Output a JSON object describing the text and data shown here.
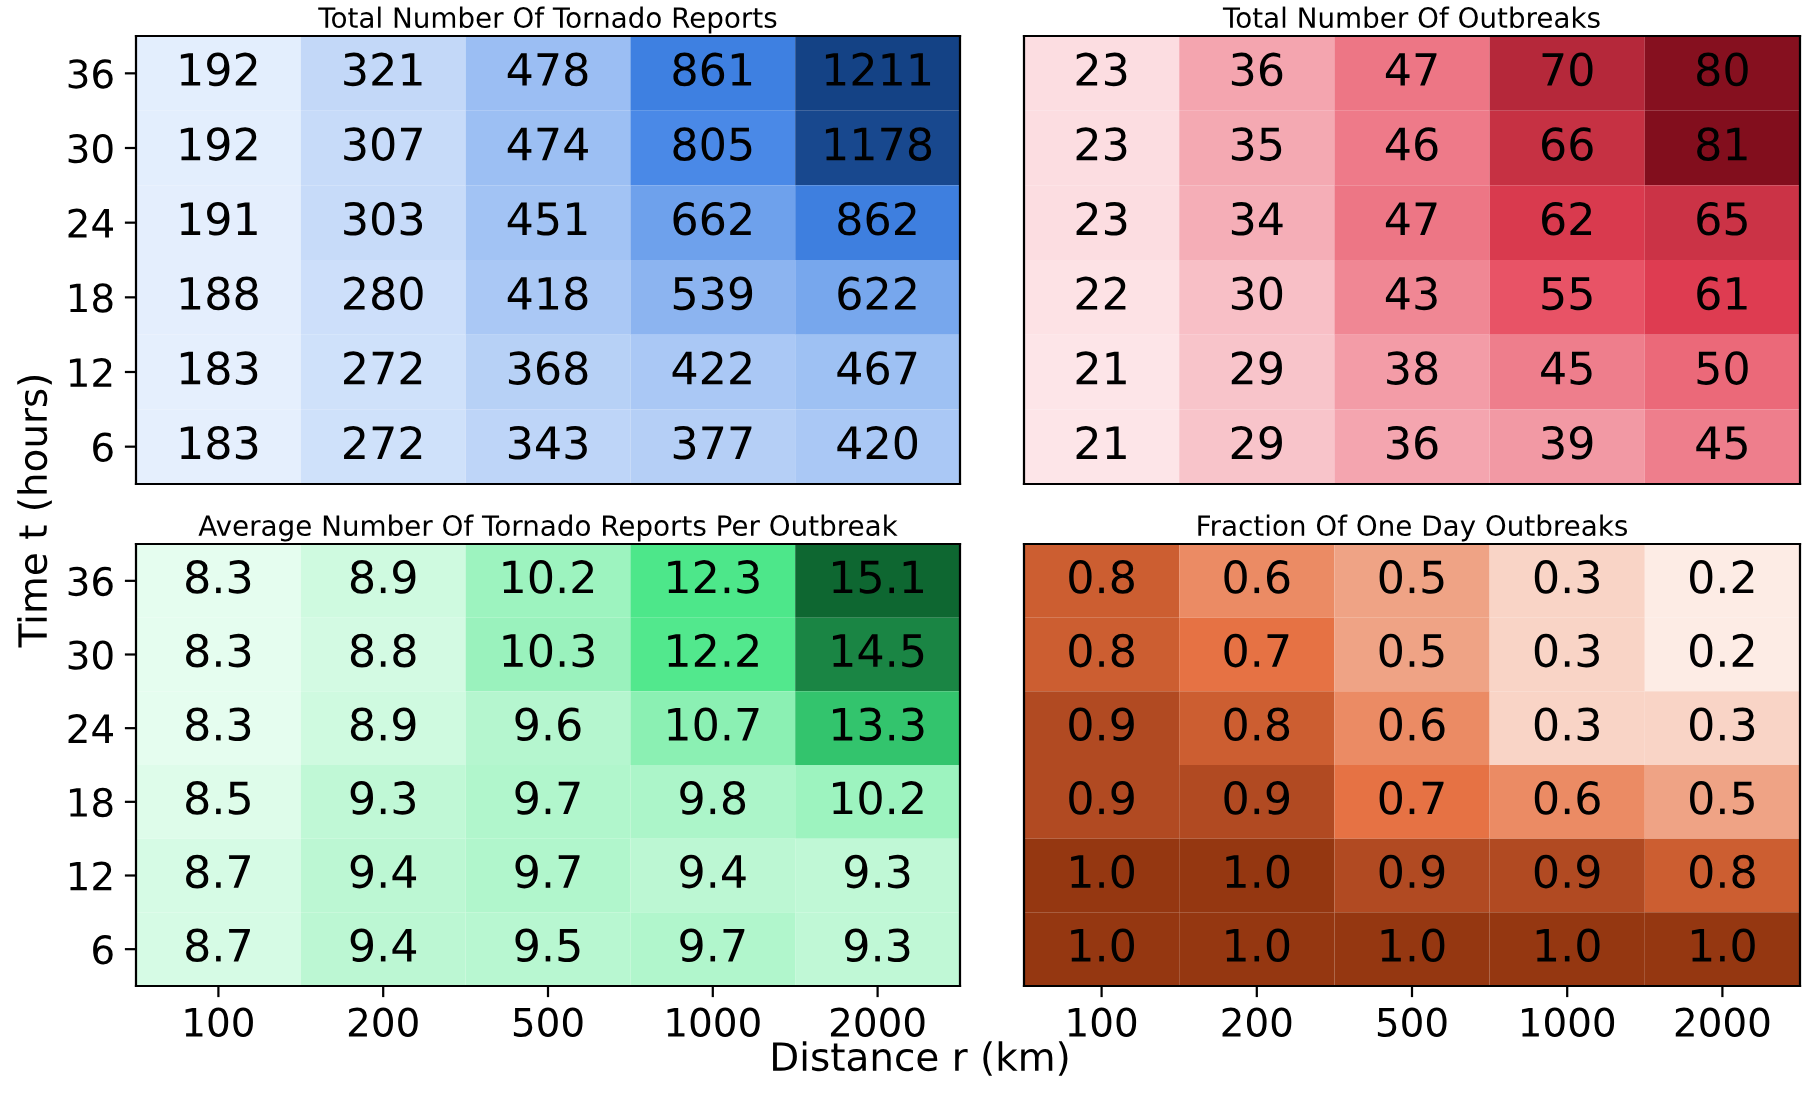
{
  "chart_data": [
    {
      "type": "heatmap",
      "title": "Total Number Of Tornado Reports",
      "color": "#08306b",
      "tick_labels": "y",
      "data_labels": true,
      "categories": [
        "100",
        "200",
        "500",
        "1000",
        "2000"
      ],
      "y_categories": [
        "36",
        "30",
        "24",
        "18",
        "12",
        "6"
      ],
      "cells": [
        [
          192,
          321,
          478,
          861,
          1211
        ],
        [
          192,
          307,
          474,
          805,
          1178
        ],
        [
          191,
          303,
          451,
          662,
          862
        ],
        [
          188,
          280,
          418,
          539,
          622
        ],
        [
          183,
          272,
          368,
          422,
          467
        ],
        [
          183,
          272,
          343,
          377,
          420
        ]
      ]
    },
    {
      "type": "heatmap",
      "title": "Total Number Of Outbreaks",
      "color": "#67000d",
      "tick_labels": false,
      "data_labels": true,
      "categories": [
        "100",
        "200",
        "500",
        "1000",
        "2000"
      ],
      "y_categories": [
        "36",
        "30",
        "24",
        "18",
        "12",
        "6"
      ],
      "cells": [
        [
          23,
          36,
          47,
          70,
          80
        ],
        [
          23,
          35,
          46,
          66,
          81
        ],
        [
          23,
          34,
          47,
          62,
          65
        ],
        [
          22,
          30,
          43,
          55,
          61
        ],
        [
          21,
          29,
          38,
          45,
          50
        ],
        [
          21,
          29,
          36,
          39,
          45
        ]
      ]
    },
    {
      "type": "heatmap",
      "title": "Average Number Of Tornado Reports Per Outbreak",
      "color": "#00441b",
      "xlabel": "Distance r (km)",
      "ylabel": "Time t (hours)",
      "categories": [
        "100",
        "200",
        "500",
        "1000",
        "2000"
      ],
      "y_categories": [
        "36",
        "30",
        "24",
        "18",
        "12",
        "6"
      ],
      "cells": [
        [
          8.3,
          8.9,
          10.2,
          12.3,
          15.1
        ],
        [
          8.3,
          8.8,
          10.3,
          12.2,
          14.5
        ],
        [
          8.3,
          8.9,
          9.6,
          10.7,
          13.3
        ],
        [
          8.5,
          9.3,
          9.7,
          9.8,
          10.2
        ],
        [
          8.7,
          9.4,
          9.7,
          9.4,
          9.3
        ],
        [
          8.7,
          9.4,
          9.5,
          9.7,
          9.3
        ]
      ],
      "cell_labels": [
        [
          "8.3",
          "8.9",
          "10.2",
          "12.3",
          "15.1"
        ],
        [
          "8.3",
          "8.8",
          "10.3",
          "12.2",
          "14.5"
        ],
        [
          "8.3",
          "8.9",
          "9.6",
          "10.7",
          "13.3"
        ],
        [
          "8.5",
          "9.3",
          "9.7",
          "9.8",
          "10.2"
        ],
        [
          "8.7",
          "9.4",
          "9.7",
          "9.4",
          "9.3"
        ],
        [
          "8.7",
          "9.4",
          "9.5",
          "9.7",
          "9.3"
        ]
      ]
    },
    {
      "type": "heatmap",
      "title": "Fraction Of One Day Outbreaks",
      "color": "#7f2704",
      "tick_labels": "x",
      "categories": [
        "100",
        "200",
        "500",
        "1000",
        "2000"
      ],
      "y_categories": [
        "36",
        "30",
        "24",
        "18",
        "12",
        "6"
      ],
      "cells": [
        [
          0.8,
          0.6,
          0.5,
          0.3,
          0.2
        ],
        [
          0.8,
          0.7,
          0.5,
          0.3,
          0.2
        ],
        [
          0.9,
          0.8,
          0.6,
          0.3,
          0.3
        ],
        [
          0.9,
          0.9,
          0.7,
          0.6,
          0.5
        ],
        [
          1.0,
          1.0,
          0.9,
          0.9,
          0.8
        ],
        [
          1.0,
          1.0,
          1.0,
          1.0,
          1.0
        ]
      ],
      "cell_labels": [
        [
          "0.8",
          "0.6",
          "0.5",
          "0.3",
          "0.2"
        ],
        [
          "0.8",
          "0.7",
          "0.5",
          "0.3",
          "0.2"
        ],
        [
          "0.9",
          "0.8",
          "0.6",
          "0.3",
          "0.3"
        ],
        [
          "0.9",
          "0.9",
          "0.7",
          "0.6",
          "0.5"
        ],
        [
          "1.0",
          "1.0",
          "0.9",
          "0.9",
          "0.8"
        ],
        [
          "1.0",
          "1.0",
          "1.0",
          "1.0",
          "1.0"
        ]
      ]
    }
  ]
}
